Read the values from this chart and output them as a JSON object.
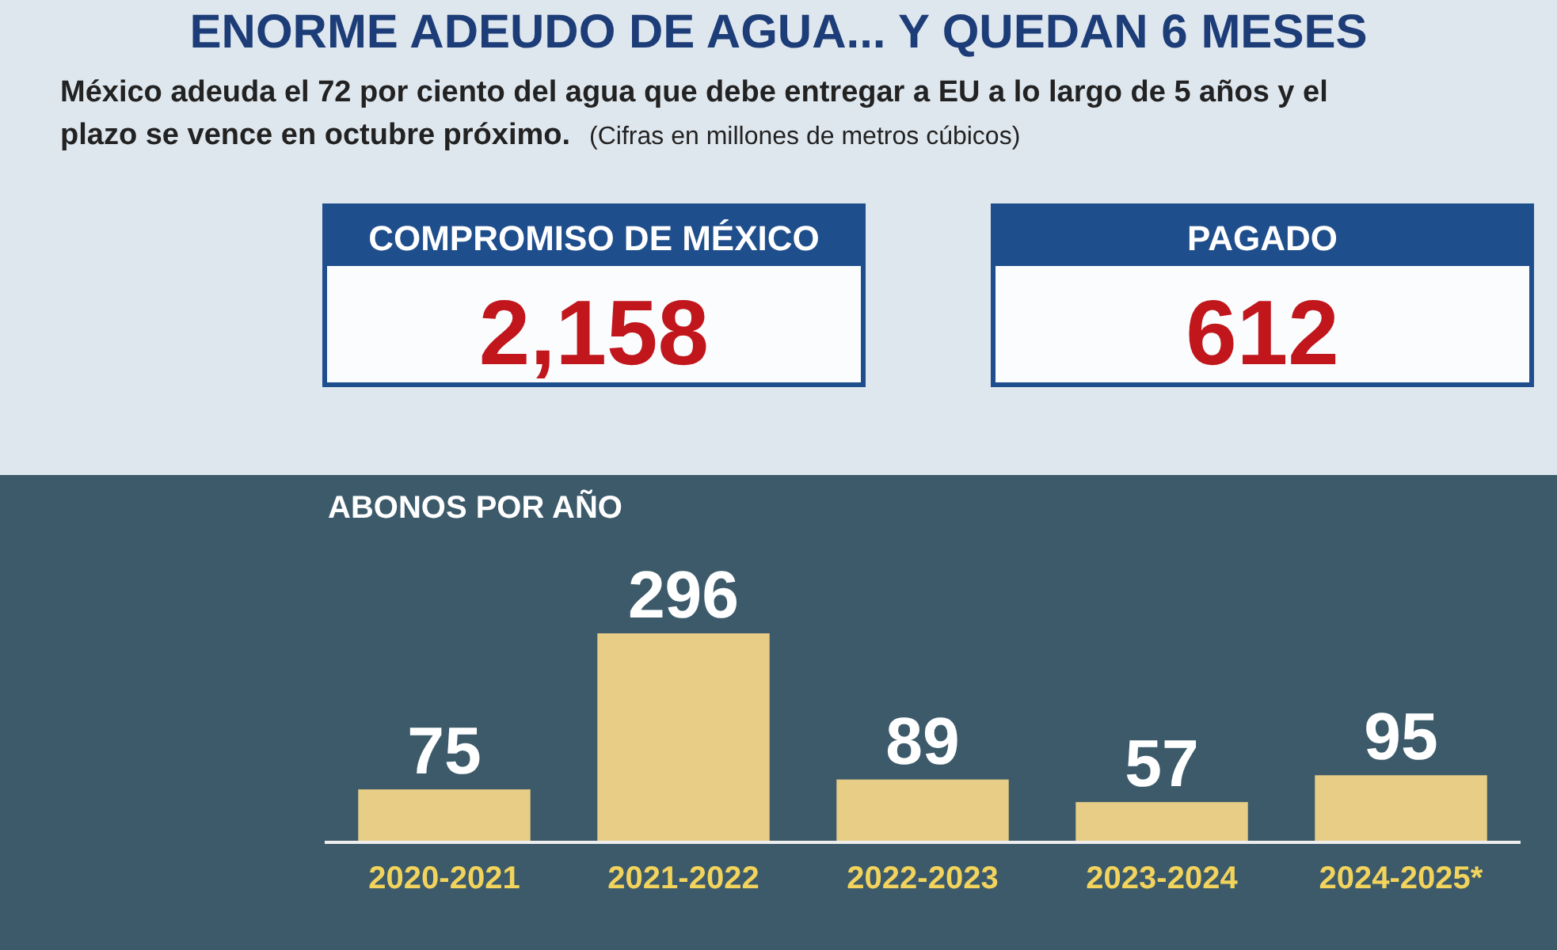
{
  "chart_data": [
    {
      "type": "other",
      "title": "ENORME ADEUDO DE AGUA... Y QUEDAN 6 MESES",
      "subtitle": "México adeuda el 72 por ciento del agua que debe entregar a EU a lo largo de 5 años y el plazo se vence en octubre próximo.",
      "annotations": [
        "(Cifras en millones de metros cúbicos)"
      ]
    },
    {
      "type": "other",
      "title": "COMPROMISO DE MÉXICO",
      "annotations": [
        "2,158"
      ]
    },
    {
      "type": "other",
      "title": "PAGADO",
      "annotations": [
        "612"
      ]
    },
    {
      "type": "bar",
      "title": "ABONOS POR AÑO",
      "categories": [
        "2020-2021",
        "2021-2022",
        "2022-2023",
        "2023-2024",
        "2024-2025*"
      ],
      "values": [
        75,
        296,
        89,
        57,
        95
      ],
      "color": "#e8cd86",
      "data_labels": true
    }
  ]
}
